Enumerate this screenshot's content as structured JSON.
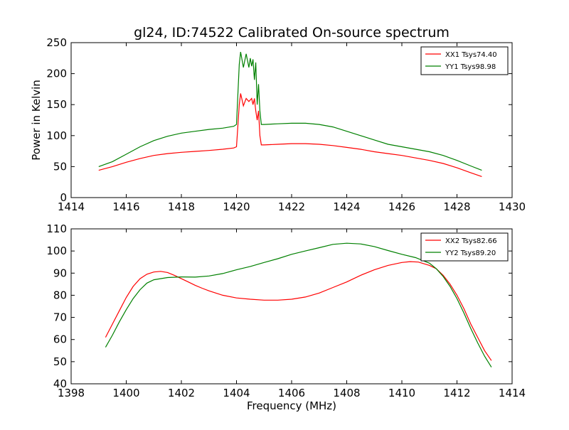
{
  "chart_data": [
    {
      "type": "line",
      "title": "gl24, ID:74522 Calibrated On-source spectrum",
      "xlabel": "",
      "ylabel": "Power in Kelvin",
      "xlim": [
        1414,
        1430
      ],
      "ylim": [
        0,
        250
      ],
      "xticks": [
        "1414",
        "1416",
        "1418",
        "1420",
        "1422",
        "1424",
        "1426",
        "1428",
        "1430"
      ],
      "yticks": [
        "0",
        "50",
        "100",
        "150",
        "200",
        "250"
      ],
      "grid": false,
      "legend_position": "top-right",
      "series": [
        {
          "name": "XX1 Tsys74.40",
          "color": "#ff0000",
          "points": [
            [
              1415.0,
              44
            ],
            [
              1415.5,
              50
            ],
            [
              1416.0,
              57
            ],
            [
              1416.5,
              63
            ],
            [
              1417.0,
              68
            ],
            [
              1417.5,
              71
            ],
            [
              1418.0,
              73
            ],
            [
              1418.5,
              74.5
            ],
            [
              1419.0,
              76
            ],
            [
              1419.5,
              78
            ],
            [
              1419.9,
              80
            ],
            [
              1420.0,
              82
            ],
            [
              1420.1,
              150
            ],
            [
              1420.15,
              168
            ],
            [
              1420.25,
              148
            ],
            [
              1420.35,
              160
            ],
            [
              1420.45,
              155
            ],
            [
              1420.55,
              160
            ],
            [
              1420.6,
              150
            ],
            [
              1420.65,
              160
            ],
            [
              1420.7,
              140
            ],
            [
              1420.75,
              125
            ],
            [
              1420.8,
              140
            ],
            [
              1420.85,
              100
            ],
            [
              1420.9,
              85
            ],
            [
              1421.0,
              85
            ],
            [
              1421.5,
              86
            ],
            [
              1422.0,
              87
            ],
            [
              1422.5,
              87
            ],
            [
              1423.0,
              86
            ],
            [
              1423.5,
              84
            ],
            [
              1424.0,
              81
            ],
            [
              1424.5,
              78
            ],
            [
              1425.0,
              74
            ],
            [
              1425.5,
              71
            ],
            [
              1426.0,
              68
            ],
            [
              1426.5,
              64
            ],
            [
              1427.0,
              60
            ],
            [
              1427.5,
              55
            ],
            [
              1428.0,
              48
            ],
            [
              1428.5,
              40
            ],
            [
              1428.9,
              34
            ]
          ]
        },
        {
          "name": "YY1 Tsys98.98",
          "color": "#008000",
          "points": [
            [
              1415.0,
              50
            ],
            [
              1415.5,
              58
            ],
            [
              1416.0,
              70
            ],
            [
              1416.5,
              82
            ],
            [
              1417.0,
              92
            ],
            [
              1417.5,
              99
            ],
            [
              1418.0,
              104
            ],
            [
              1418.5,
              107
            ],
            [
              1419.0,
              110
            ],
            [
              1419.5,
              112
            ],
            [
              1419.9,
              115
            ],
            [
              1420.0,
              118
            ],
            [
              1420.1,
              215
            ],
            [
              1420.15,
              235
            ],
            [
              1420.25,
              210
            ],
            [
              1420.35,
              232
            ],
            [
              1420.45,
              210
            ],
            [
              1420.5,
              225
            ],
            [
              1420.55,
              212
            ],
            [
              1420.6,
              223
            ],
            [
              1420.65,
              190
            ],
            [
              1420.7,
              218
            ],
            [
              1420.75,
              150
            ],
            [
              1420.8,
              183
            ],
            [
              1420.85,
              140
            ],
            [
              1420.9,
              118
            ],
            [
              1421.0,
              118
            ],
            [
              1421.5,
              119
            ],
            [
              1422.0,
              120
            ],
            [
              1422.5,
              120
            ],
            [
              1423.0,
              118
            ],
            [
              1423.5,
              114
            ],
            [
              1424.0,
              107
            ],
            [
              1424.5,
              100
            ],
            [
              1425.0,
              93
            ],
            [
              1425.5,
              86
            ],
            [
              1426.0,
              82
            ],
            [
              1426.5,
              78
            ],
            [
              1427.0,
              74
            ],
            [
              1427.5,
              68
            ],
            [
              1428.0,
              60
            ],
            [
              1428.5,
              51
            ],
            [
              1428.9,
              44
            ]
          ]
        }
      ]
    },
    {
      "type": "line",
      "title": "",
      "xlabel": "Frequency (MHz)",
      "ylabel": "",
      "xlim": [
        1398,
        1414
      ],
      "ylim": [
        40,
        110
      ],
      "xticks": [
        "1398",
        "1400",
        "1402",
        "1404",
        "1406",
        "1408",
        "1410",
        "1412",
        "1414"
      ],
      "yticks": [
        "40",
        "50",
        "60",
        "70",
        "80",
        "90",
        "100",
        "110"
      ],
      "grid": false,
      "legend_position": "top-right",
      "series": [
        {
          "name": "XX2 Tsys82.66",
          "color": "#ff0000",
          "points": [
            [
              1399.25,
              61
            ],
            [
              1399.5,
              67
            ],
            [
              1399.75,
              73
            ],
            [
              1400.0,
              79
            ],
            [
              1400.25,
              84
            ],
            [
              1400.5,
              87.5
            ],
            [
              1400.75,
              89.5
            ],
            [
              1401.0,
              90.5
            ],
            [
              1401.25,
              90.8
            ],
            [
              1401.5,
              90.3
            ],
            [
              1401.75,
              89
            ],
            [
              1402.0,
              87.5
            ],
            [
              1402.25,
              86
            ],
            [
              1402.5,
              84.5
            ],
            [
              1402.75,
              83.2
            ],
            [
              1403.0,
              82
            ],
            [
              1403.25,
              81
            ],
            [
              1403.5,
              80
            ],
            [
              1404.0,
              78.8
            ],
            [
              1404.5,
              78.2
            ],
            [
              1405.0,
              77.8
            ],
            [
              1405.5,
              77.8
            ],
            [
              1406.0,
              78.2
            ],
            [
              1406.5,
              79.2
            ],
            [
              1407.0,
              81
            ],
            [
              1407.5,
              83.5
            ],
            [
              1408.0,
              86
            ],
            [
              1408.5,
              89
            ],
            [
              1409.0,
              91.5
            ],
            [
              1409.5,
              93.5
            ],
            [
              1410.0,
              94.8
            ],
            [
              1410.3,
              95.2
            ],
            [
              1410.6,
              95
            ],
            [
              1411.0,
              93.5
            ],
            [
              1411.25,
              92
            ],
            [
              1411.5,
              89
            ],
            [
              1411.75,
              85
            ],
            [
              1412.0,
              80
            ],
            [
              1412.25,
              74
            ],
            [
              1412.5,
              67
            ],
            [
              1412.75,
              61
            ],
            [
              1413.0,
              55
            ],
            [
              1413.25,
              50.5
            ]
          ]
        },
        {
          "name": "YY2 Tsys89.20",
          "color": "#008000",
          "points": [
            [
              1399.25,
              56.5
            ],
            [
              1399.5,
              62
            ],
            [
              1399.75,
              68
            ],
            [
              1400.0,
              73.5
            ],
            [
              1400.25,
              78.5
            ],
            [
              1400.5,
              82.5
            ],
            [
              1400.75,
              85.5
            ],
            [
              1401.0,
              87
            ],
            [
              1401.5,
              88
            ],
            [
              1402.0,
              88.3
            ],
            [
              1402.5,
              88.2
            ],
            [
              1403.0,
              88.7
            ],
            [
              1403.5,
              89.8
            ],
            [
              1404.0,
              91.5
            ],
            [
              1404.5,
              93
            ],
            [
              1405.0,
              94.8
            ],
            [
              1405.5,
              96.5
            ],
            [
              1406.0,
              98.5
            ],
            [
              1406.5,
              100
            ],
            [
              1407.0,
              101.5
            ],
            [
              1407.5,
              103
            ],
            [
              1408.0,
              103.5
            ],
            [
              1408.5,
              103.2
            ],
            [
              1409.0,
              102
            ],
            [
              1409.5,
              100.2
            ],
            [
              1410.0,
              98.5
            ],
            [
              1410.5,
              97
            ],
            [
              1411.0,
              94.5
            ],
            [
              1411.25,
              92
            ],
            [
              1411.5,
              88.5
            ],
            [
              1411.75,
              84
            ],
            [
              1412.0,
              78.5
            ],
            [
              1412.25,
              72
            ],
            [
              1412.5,
              65
            ],
            [
              1412.75,
              58.5
            ],
            [
              1413.0,
              52.5
            ],
            [
              1413.25,
              47.5
            ]
          ]
        }
      ]
    }
  ]
}
